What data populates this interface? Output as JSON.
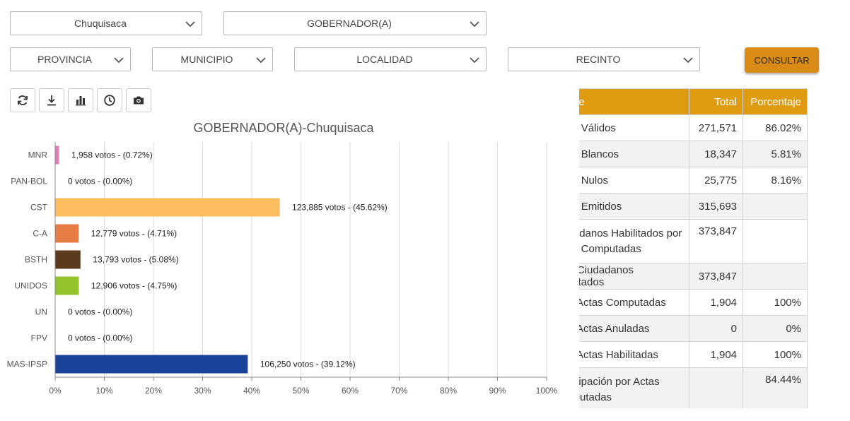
{
  "filters": {
    "departamento": "Chuquisaca",
    "eleccion": "GOBERNADOR(A)",
    "provincia": "PROVINCIA",
    "municipio": "MUNICIPIO",
    "localidad": "LOCALIDAD",
    "recinto": "RECINTO"
  },
  "actions": {
    "consultar": "CONSULTAR"
  },
  "toolbar": [
    "refresh-icon",
    "download-icon",
    "bar-chart-icon",
    "clock-icon",
    "camera-icon"
  ],
  "chart_data": {
    "type": "bar",
    "orientation": "horizontal",
    "title": "GOBERNADOR(A)-Chuquisaca",
    "categories": [
      "MNR",
      "PAN-BOL",
      "CST",
      "C-A",
      "BSTH",
      "UNIDOS",
      "UN",
      "FPV",
      "MAS-IPSP"
    ],
    "values": [
      0.72,
      0.0,
      45.62,
      4.71,
      5.08,
      4.75,
      0.0,
      0.0,
      39.12
    ],
    "labels": [
      "1,958 votos - (0.72%)",
      "0 votos - (0.00%)",
      "123,885 votos - (45.62%)",
      "12,779 votos - (4.71%)",
      "13,793 votos - (5.08%)",
      "12,906 votos - (4.75%)",
      "0 votos - (0.00%)",
      "0 votos - (0.00%)",
      "106,250 votos - (39.12%)"
    ],
    "colors": [
      "#e37fb4",
      "#999999",
      "#fdbd5f",
      "#e87c45",
      "#5c3a1e",
      "#94c22a",
      "#999999",
      "#999999",
      "#1a449a"
    ],
    "xlim": [
      0,
      100
    ],
    "xticks": [
      "0%",
      "10%",
      "20%",
      "30%",
      "40%",
      "50%",
      "60%",
      "70%",
      "80%",
      "90%",
      "100%"
    ],
    "grid": true
  },
  "table": {
    "headers": [
      "Detalle",
      "Total",
      "Porcentaje"
    ],
    "rows": [
      {
        "label": "Votos Válidos",
        "total": "271,571",
        "pct": "86.02%"
      },
      {
        "label": "Votos Blancos",
        "total": "18,347",
        "pct": "5.81%"
      },
      {
        "label": "Votos Nulos",
        "total": "25,775",
        "pct": "8.16%"
      },
      {
        "label": "Votos Emitidos",
        "total": "315,693",
        "pct": ""
      },
      {
        "label": "Ciudadanos Habilitados por Actas Computadas",
        "total": "373,847",
        "pct": ""
      },
      {
        "label": "Total Ciudadanos Habilitados",
        "total": "373,847",
        "pct": ""
      },
      {
        "label": "Total Actas Computadas",
        "total": "1,904",
        "pct": "100%"
      },
      {
        "label": "Total Actas Anuladas",
        "total": "0",
        "pct": "0%"
      },
      {
        "label": "Total Actas Habilitadas",
        "total": "1,904",
        "pct": "100%"
      },
      {
        "label": "Participación por Actas Computadas",
        "total": "",
        "pct": "84.44%"
      }
    ]
  }
}
